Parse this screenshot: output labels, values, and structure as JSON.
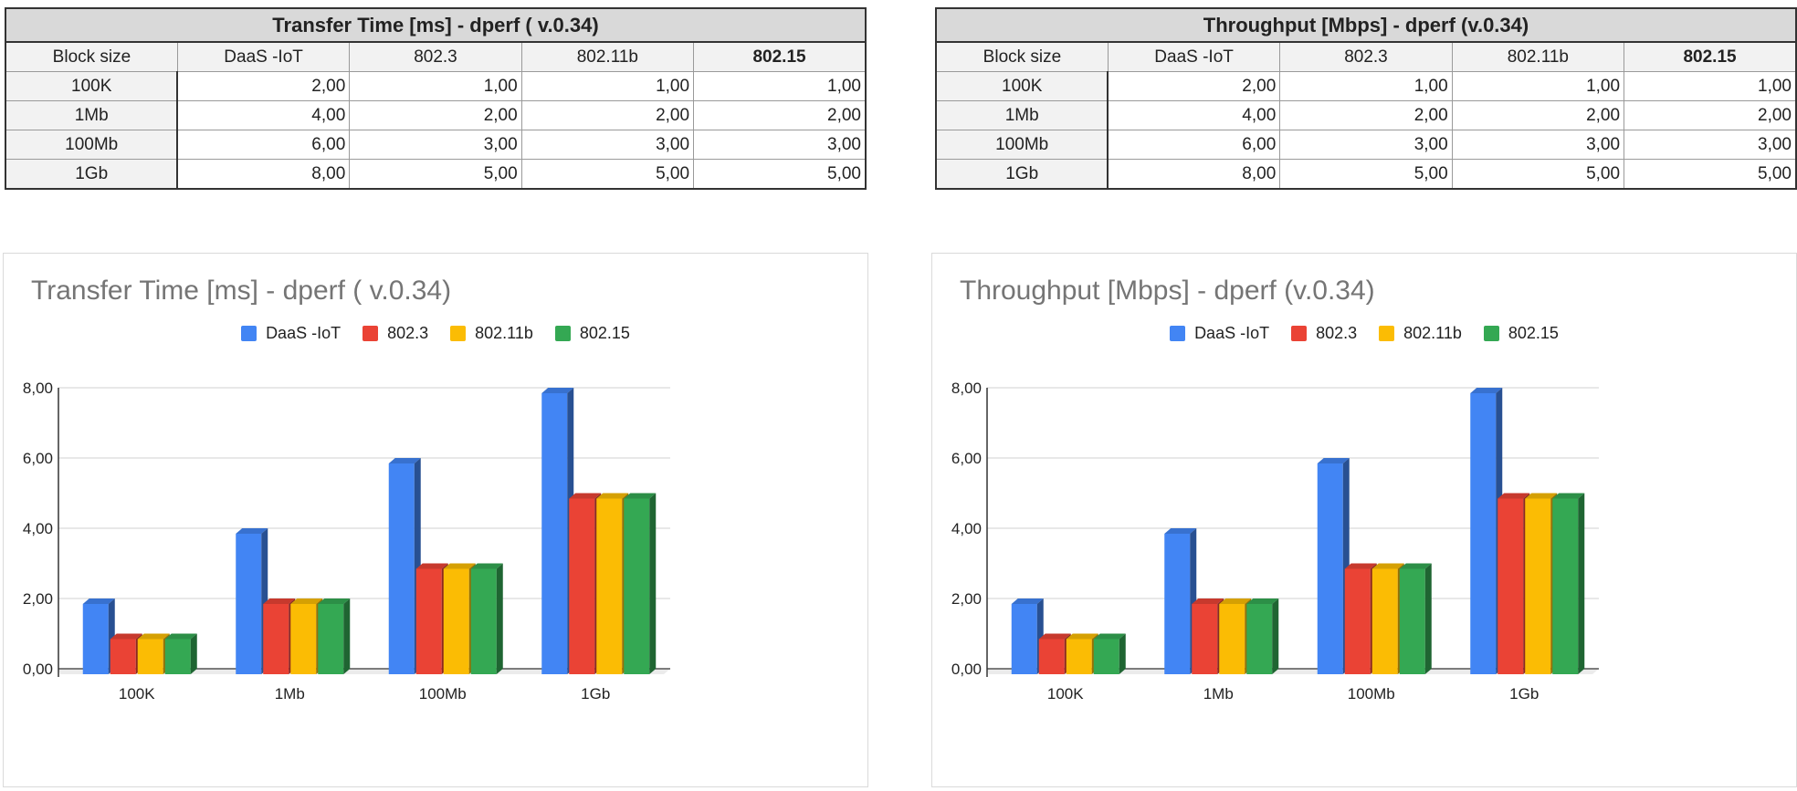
{
  "colors": {
    "DaaS -IoT": "#4285f4",
    "802.3": "#ea4335",
    "802.11b": "#fbbc04",
    "802.15": "#34a853"
  },
  "tables": [
    {
      "title": "Transfer Time [ms] - dperf ( v.0.34)",
      "headers": [
        "Block size",
        "DaaS -IoT",
        "802.3",
        "802.11b",
        "802.15"
      ],
      "rows": [
        [
          "100K",
          "2,00",
          "1,00",
          "1,00",
          "1,00"
        ],
        [
          "1Mb",
          "4,00",
          "2,00",
          "2,00",
          "2,00"
        ],
        [
          "100Mb",
          "6,00",
          "3,00",
          "3,00",
          "3,00"
        ],
        [
          "1Gb",
          "8,00",
          "5,00",
          "5,00",
          "5,00"
        ]
      ]
    },
    {
      "title": "Throughput [Mbps] - dperf (v.0.34)",
      "headers": [
        "Block size",
        "DaaS -IoT",
        "802.3",
        "802.11b",
        "802.15"
      ],
      "rows": [
        [
          "100K",
          "2,00",
          "1,00",
          "1,00",
          "1,00"
        ],
        [
          "1Mb",
          "4,00",
          "2,00",
          "2,00",
          "2,00"
        ],
        [
          "100Mb",
          "6,00",
          "3,00",
          "3,00",
          "3,00"
        ],
        [
          "1Gb",
          "8,00",
          "5,00",
          "5,00",
          "5,00"
        ]
      ]
    }
  ],
  "chart_data": [
    {
      "type": "bar",
      "title": "Transfer Time [ms] - dperf ( v.0.34)",
      "categories": [
        "100K",
        "1Mb",
        "100Mb",
        "1Gb"
      ],
      "series": [
        {
          "name": "DaaS -IoT",
          "values": [
            2,
            4,
            6,
            8
          ]
        },
        {
          "name": "802.3",
          "values": [
            1,
            2,
            3,
            5
          ]
        },
        {
          "name": "802.11b",
          "values": [
            1,
            2,
            3,
            5
          ]
        },
        {
          "name": "802.15",
          "values": [
            1,
            2,
            3,
            5
          ]
        }
      ],
      "ylim": [
        0,
        8
      ],
      "yticks": [
        "0,00",
        "2,00",
        "4,00",
        "6,00",
        "8,00"
      ],
      "legend": "top",
      "grid": true
    },
    {
      "type": "bar",
      "title": "Throughput [Mbps] - dperf (v.0.34)",
      "categories": [
        "100K",
        "1Mb",
        "100Mb",
        "1Gb"
      ],
      "series": [
        {
          "name": "DaaS -IoT",
          "values": [
            2,
            4,
            6,
            8
          ]
        },
        {
          "name": "802.3",
          "values": [
            1,
            2,
            3,
            5
          ]
        },
        {
          "name": "802.11b",
          "values": [
            1,
            2,
            3,
            5
          ]
        },
        {
          "name": "802.15",
          "values": [
            1,
            2,
            3,
            5
          ]
        }
      ],
      "ylim": [
        0,
        8
      ],
      "yticks": [
        "0,00",
        "2,00",
        "4,00",
        "6,00",
        "8,00"
      ],
      "legend": "top",
      "grid": true
    }
  ]
}
